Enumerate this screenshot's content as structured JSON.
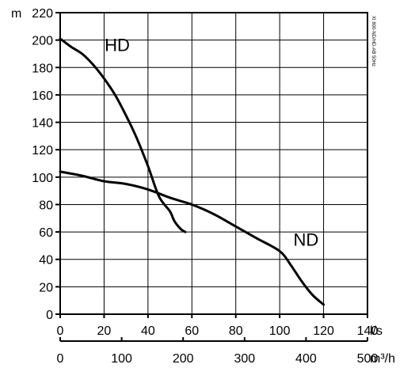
{
  "chart_data": {
    "type": "line",
    "ylabel": "m",
    "xlabel": "l/s",
    "x2label": "m³/h",
    "side_note": "XI 800-ND/HD-AB 50Hz",
    "xlim": [
      0,
      140
    ],
    "ylim": [
      0,
      220
    ],
    "x2lim": [
      0,
      500
    ],
    "x_ticks": [
      0,
      20,
      40,
      60,
      80,
      100,
      120,
      140
    ],
    "y_ticks": [
      0,
      20,
      40,
      60,
      80,
      100,
      120,
      140,
      160,
      180,
      200,
      220
    ],
    "x2_ticks": [
      0,
      100,
      200,
      300,
      400,
      500
    ],
    "grid": true,
    "series": [
      {
        "name": "HD",
        "x": [
          0,
          5,
          10,
          15,
          20,
          25,
          30,
          35,
          40,
          45,
          50,
          52,
          55,
          57
        ],
        "y": [
          201,
          195,
          190,
          182,
          172,
          160,
          145,
          128,
          108,
          86,
          75,
          68,
          62,
          60
        ]
      },
      {
        "name": "ND",
        "x": [
          0,
          10,
          20,
          30,
          40,
          50,
          60,
          70,
          80,
          90,
          100,
          105,
          110,
          115,
          120
        ],
        "y": [
          104,
          101,
          97,
          95,
          91,
          85,
          80,
          73,
          64,
          55,
          46,
          36,
          24,
          14,
          7
        ]
      }
    ]
  }
}
